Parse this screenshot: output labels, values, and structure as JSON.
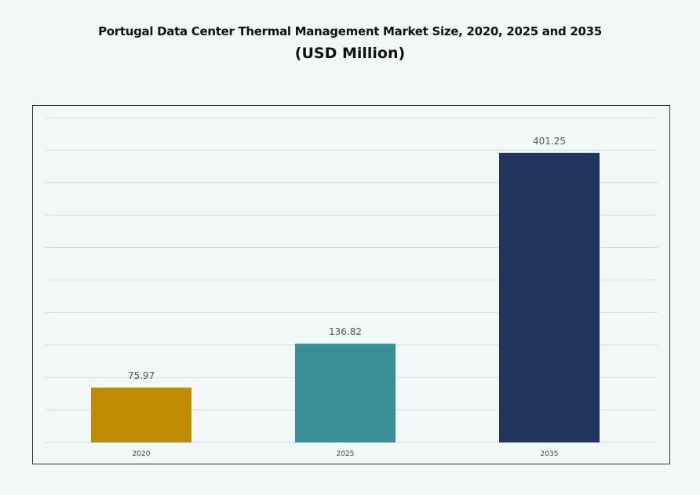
{
  "chart_data": {
    "type": "bar",
    "title": "Portugal Data Center Thermal Management Market Size, 2020, 2025 and 2035",
    "subtitle": "(USD Million)",
    "categories": [
      "2020",
      "2025",
      "2035"
    ],
    "values": [
      75.97,
      136.82,
      401.25
    ],
    "value_labels": [
      "75.97",
      "136.82",
      "401.25"
    ],
    "colors": [
      "#bf8c00",
      "#3a8f96",
      "#20365f"
    ],
    "xlabel": "",
    "ylabel": "",
    "ylim": [
      0,
      450
    ],
    "grid": true,
    "y_tick_labels_shown": false,
    "legend": "none"
  }
}
